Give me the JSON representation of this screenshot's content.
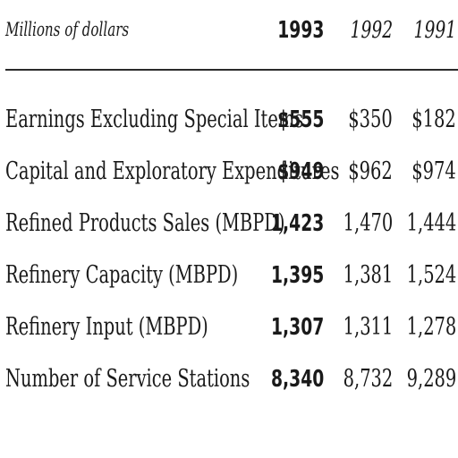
{
  "table": {
    "units_label": "Millions of dollars",
    "columns": [
      "1993",
      "1992",
      "1991"
    ],
    "rows": [
      {
        "label": "Earnings Excluding Special Items",
        "values": [
          "$555",
          "$350",
          "$182"
        ]
      },
      {
        "label": "Capital and Exploratory Expenditures",
        "values": [
          "$949",
          "$962",
          "$974"
        ]
      },
      {
        "label": "Refined Products Sales (MBPD)",
        "values": [
          "1,423",
          "1,470",
          "1,444"
        ]
      },
      {
        "label": "Refinery Capacity (MBPD)",
        "values": [
          "1,395",
          "1,381",
          "1,524"
        ]
      },
      {
        "label": "Refinery Input (MBPD)",
        "values": [
          "1,307",
          "1,311",
          "1,278"
        ]
      },
      {
        "label": "Number of Service Stations",
        "values": [
          "8,340",
          "8,732",
          "9,289"
        ]
      }
    ]
  }
}
